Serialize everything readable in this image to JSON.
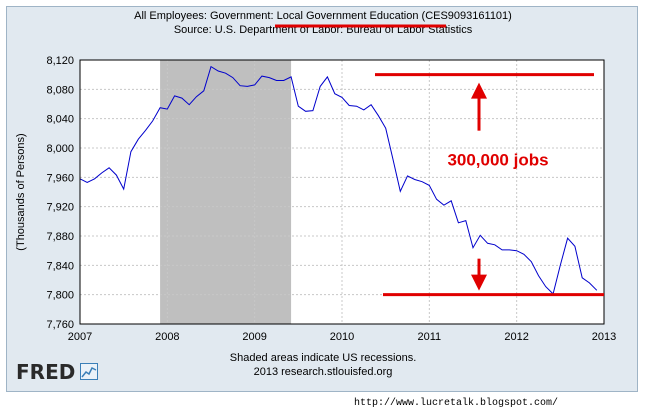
{
  "header": {
    "title_prefix": "All Employees: Government: ",
    "title_highlight": "Local Government Education",
    "title_suffix": " (CES9093161101)",
    "subtitle": "Source: U.S. Department of Labor: Bureau of Labor Statistics"
  },
  "footer": {
    "recession_note": "Shaded areas indicate US recessions.",
    "copyright": "2013 research.stlouisfed.org",
    "logo": "FRED",
    "blog_url": "http://www.lucretalk.blogspot.com/"
  },
  "annotation": {
    "label": "300,000 jobs",
    "color": "#e00000"
  },
  "colors": {
    "series": "#0000cc",
    "recession": "#bfbfbf",
    "annotation": "#e00000",
    "background": "#e1e9f0",
    "plot_background": "#ffffff"
  },
  "chart_data": {
    "type": "line",
    "title": "All Employees: Government: Local Government Education (CES9093161101)",
    "subtitle": "Source: U.S. Department of Labor: Bureau of Labor Statistics",
    "xlabel": "",
    "ylabel": "(Thousands of Persons)",
    "xlim": [
      2007,
      2013
    ],
    "ylim": [
      7760,
      8120
    ],
    "x_ticks": [
      "2007",
      "2008",
      "2009",
      "2010",
      "2011",
      "2012",
      "2013"
    ],
    "y_ticks": [
      "7,760",
      "7,800",
      "7,840",
      "7,880",
      "7,920",
      "7,960",
      "8,000",
      "8,040",
      "8,080",
      "8,120"
    ],
    "grid": true,
    "recessions": [
      {
        "start": 2007.917,
        "end": 2009.417
      }
    ],
    "annotations": [
      {
        "text": "300,000 jobs",
        "top_value": 8100,
        "bottom_value": 7800
      }
    ],
    "series": [
      {
        "x": [
          2007.0,
          2007.083,
          2007.167,
          2007.25,
          2007.333,
          2007.417,
          2007.5,
          2007.583,
          2007.667,
          2007.75,
          2007.833,
          2007.917,
          2008.0,
          2008.083,
          2008.167,
          2008.25,
          2008.333,
          2008.417,
          2008.5,
          2008.583,
          2008.667,
          2008.75,
          2008.833,
          2008.917,
          2009.0,
          2009.083,
          2009.167,
          2009.25,
          2009.333,
          2009.417,
          2009.5,
          2009.583,
          2009.667,
          2009.75,
          2009.833,
          2009.917,
          2010.0,
          2010.083,
          2010.167,
          2010.25,
          2010.333,
          2010.417,
          2010.5,
          2010.583,
          2010.667,
          2010.75,
          2010.833,
          2010.917,
          2011.0,
          2011.083,
          2011.167,
          2011.25,
          2011.333,
          2011.417,
          2011.5,
          2011.583,
          2011.667,
          2011.75,
          2011.833,
          2011.917,
          2012.0,
          2012.083,
          2012.167,
          2012.25,
          2012.333,
          2012.417,
          2012.5,
          2012.583,
          2012.667,
          2012.75,
          2012.833,
          2012.917
        ],
        "values": [
          7958,
          7953,
          7958,
          7966,
          7973,
          7963,
          7944,
          7995,
          8012,
          8024,
          8037,
          8055,
          8053,
          8071,
          8068,
          8059,
          8070,
          8078,
          8111,
          8105,
          8102,
          8096,
          8085,
          8084,
          8086,
          8098,
          8096,
          8092,
          8092,
          8097,
          8057,
          8050,
          8051,
          8084,
          8097,
          8074,
          8069,
          8058,
          8057,
          8052,
          8059,
          8044,
          8027,
          7985,
          7941,
          7962,
          7957,
          7954,
          7949,
          7930,
          7922,
          7928,
          7898,
          7901,
          7864,
          7881,
          7870,
          7868,
          7861,
          7861,
          7860,
          7855,
          7845,
          7826,
          7811,
          7801,
          7840,
          7877,
          7866,
          7823,
          7816,
          7806
        ]
      }
    ]
  }
}
